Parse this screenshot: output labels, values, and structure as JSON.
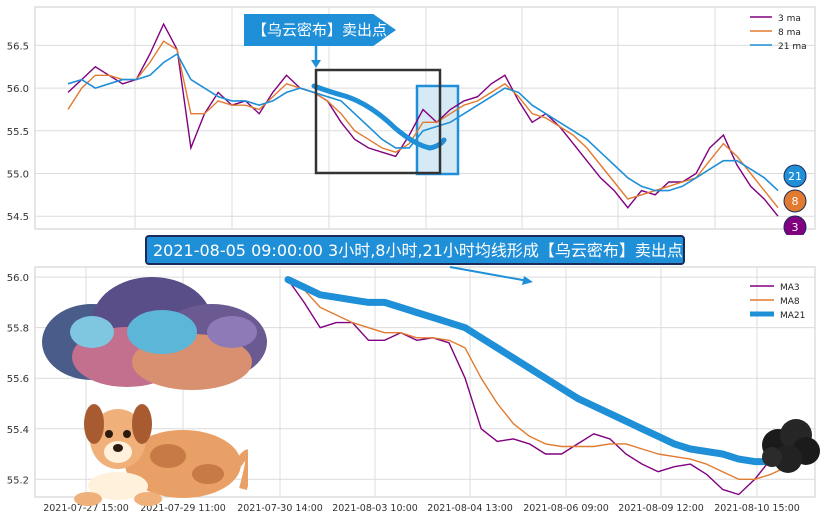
{
  "top_banner": "【乌云密布】卖出点",
  "mid_banner": "2021-08-05 09:00:00 3小时,8小时,21小时均线形成【乌云密布】卖出点",
  "colors": {
    "ma3": "#800080",
    "ma8": "#e07b2f",
    "ma21": "#1f8fd8",
    "grid": "#dcdcdc",
    "frame_box": "#333333",
    "highlight_box": "#1f8fd8"
  },
  "badges": [
    "21",
    "8",
    "3"
  ],
  "icons": [
    "storm-cloud-illustration",
    "dog-illustration",
    "dark-cloud-icon"
  ],
  "chart_data": [
    {
      "type": "line",
      "legend": [
        "3 ma",
        "8 ma",
        "21 ma"
      ],
      "legend_position": "top-right",
      "ylim": [
        54.35,
        56.95
      ],
      "yticks": [
        "54.5",
        "55.0",
        "55.5",
        "56.0",
        "56.5"
      ],
      "grid": true,
      "series": [
        {
          "name": "3 ma",
          "values": [
            55.95,
            56.1,
            56.25,
            56.15,
            56.05,
            56.1,
            56.4,
            56.75,
            56.45,
            55.3,
            55.7,
            55.95,
            55.8,
            55.85,
            55.7,
            55.95,
            56.15,
            56.0,
            55.95,
            55.85,
            55.6,
            55.4,
            55.3,
            55.25,
            55.2,
            55.45,
            55.75,
            55.6,
            55.75,
            55.85,
            55.9,
            56.05,
            56.15,
            55.85,
            55.6,
            55.7,
            55.55,
            55.35,
            55.15,
            54.95,
            54.8,
            54.6,
            54.8,
            54.75,
            54.9,
            54.9,
            55.0,
            55.3,
            55.45,
            55.1,
            54.85,
            54.7,
            54.5
          ]
        },
        {
          "name": "8 ma",
          "values": [
            55.75,
            56.0,
            56.15,
            56.15,
            56.1,
            56.1,
            56.3,
            56.55,
            56.45,
            55.7,
            55.7,
            55.85,
            55.8,
            55.8,
            55.75,
            55.9,
            56.05,
            56.0,
            55.95,
            55.85,
            55.7,
            55.5,
            55.4,
            55.3,
            55.25,
            55.35,
            55.6,
            55.6,
            55.7,
            55.8,
            55.85,
            55.95,
            56.05,
            55.9,
            55.7,
            55.65,
            55.55,
            55.45,
            55.3,
            55.1,
            54.9,
            54.7,
            54.75,
            54.8,
            54.85,
            54.9,
            54.95,
            55.15,
            55.35,
            55.2,
            55.0,
            54.8,
            54.6
          ]
        },
        {
          "name": "21 ma",
          "values": [
            56.05,
            56.1,
            56.0,
            56.05,
            56.1,
            56.1,
            56.15,
            56.3,
            56.4,
            56.1,
            56.0,
            55.9,
            55.85,
            55.85,
            55.8,
            55.85,
            55.95,
            56.0,
            55.95,
            55.9,
            55.85,
            55.7,
            55.55,
            55.4,
            55.3,
            55.3,
            55.5,
            55.55,
            55.6,
            55.7,
            55.8,
            55.9,
            56.0,
            55.95,
            55.8,
            55.7,
            55.6,
            55.5,
            55.4,
            55.25,
            55.1,
            54.95,
            54.85,
            54.8,
            54.8,
            54.85,
            54.95,
            55.05,
            55.15,
            55.15,
            55.05,
            54.95,
            54.8
          ]
        }
      ]
    },
    {
      "type": "line",
      "legend": [
        "MA3",
        "MA8",
        "MA21"
      ],
      "legend_position": "top-right",
      "ylim": [
        55.13,
        56.04
      ],
      "yticks": [
        "55.2",
        "55.4",
        "55.6",
        "55.8",
        "56.0"
      ],
      "grid": true,
      "x_tick_labels": [
        "2021-07-27 15:00",
        "2021-07-29 11:00",
        "2021-07-30 14:00",
        "2021-08-03 10:00",
        "2021-08-04 13:00",
        "2021-08-06 09:00",
        "2021-08-09 12:00",
        "2021-08-10 15:00"
      ],
      "series": [
        {
          "name": "MA3",
          "values": [
            55.99,
            55.9,
            55.8,
            55.82,
            55.82,
            55.75,
            55.75,
            55.78,
            55.75,
            55.76,
            55.74,
            55.6,
            55.4,
            55.35,
            55.36,
            55.34,
            55.3,
            55.3,
            55.34,
            55.38,
            55.36,
            55.3,
            55.26,
            55.23,
            55.25,
            55.26,
            55.22,
            55.16,
            55.14,
            55.2,
            55.28,
            55.27
          ]
        },
        {
          "name": "MA8",
          "values": [
            56.0,
            55.95,
            55.88,
            55.85,
            55.82,
            55.8,
            55.78,
            55.78,
            55.76,
            55.76,
            55.75,
            55.72,
            55.6,
            55.5,
            55.42,
            55.37,
            55.34,
            55.33,
            55.33,
            55.33,
            55.34,
            55.34,
            55.32,
            55.3,
            55.29,
            55.28,
            55.26,
            55.23,
            55.2,
            55.2,
            55.22,
            55.25
          ]
        },
        {
          "name": "MA21",
          "values": [
            55.99,
            55.96,
            55.93,
            55.92,
            55.91,
            55.9,
            55.9,
            55.88,
            55.86,
            55.84,
            55.82,
            55.8,
            55.76,
            55.72,
            55.68,
            55.64,
            55.6,
            55.56,
            55.52,
            55.49,
            55.46,
            55.43,
            55.4,
            55.37,
            55.34,
            55.32,
            55.31,
            55.3,
            55.28,
            55.27,
            55.27,
            55.27
          ]
        }
      ]
    }
  ]
}
